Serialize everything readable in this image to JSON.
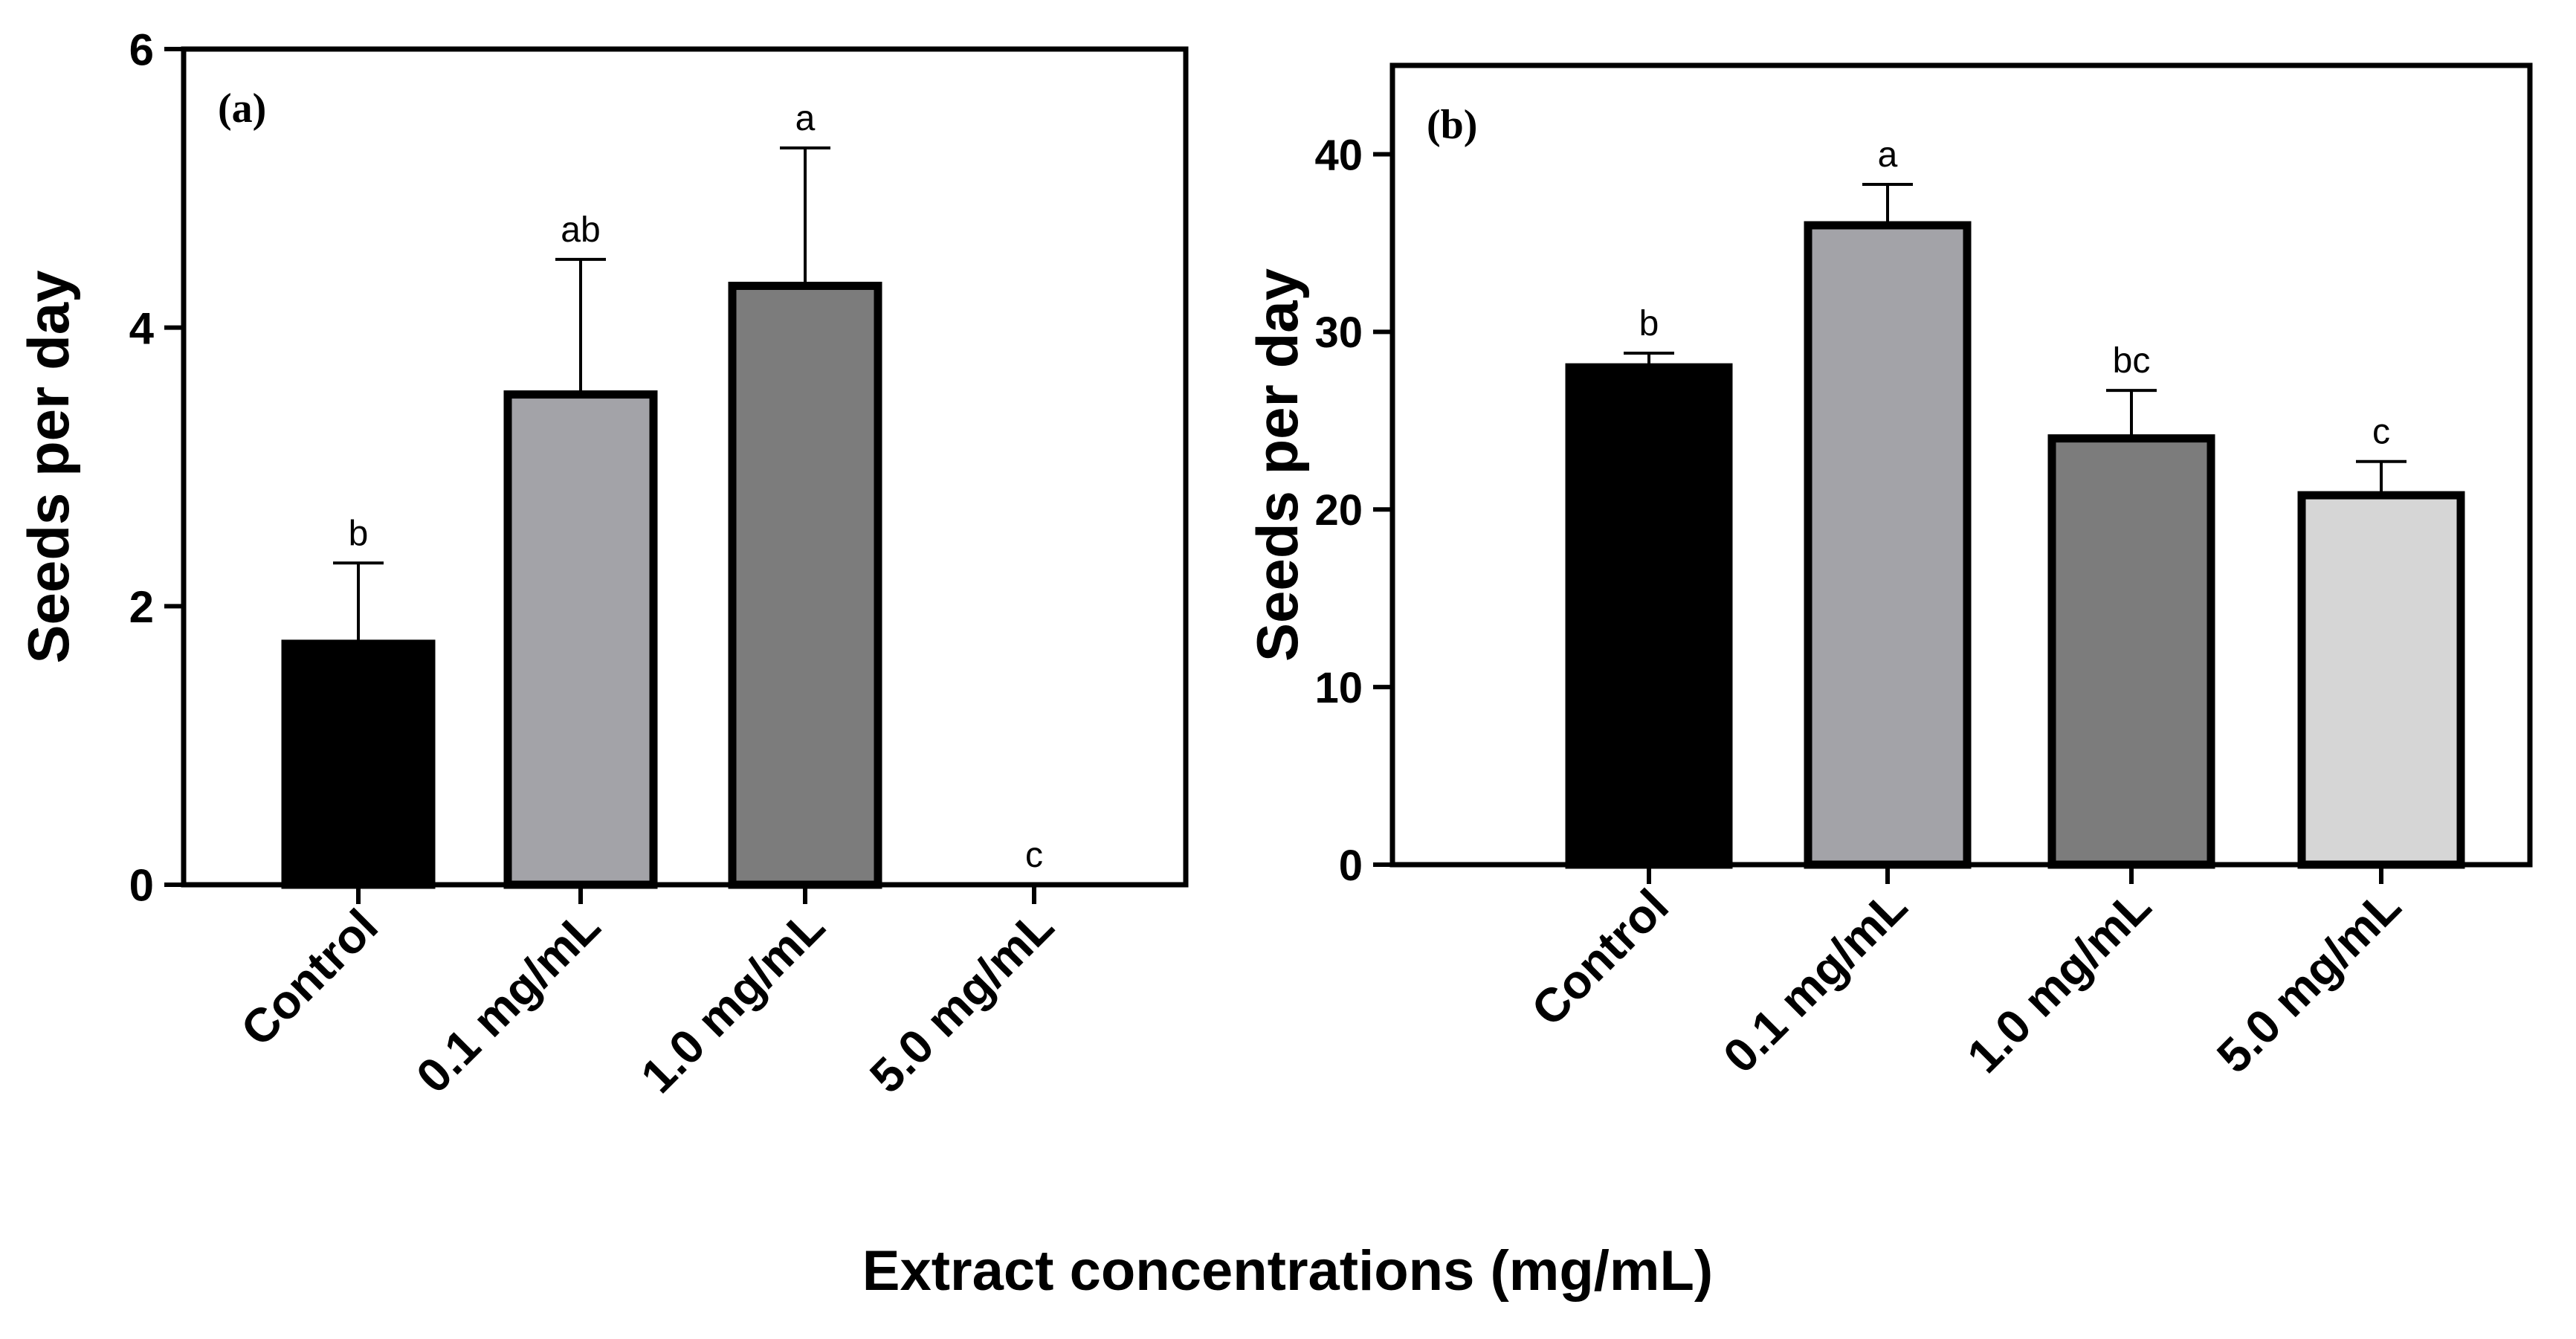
{
  "figure": {
    "shared_xlabel": "Extract concentrations (mg/mL)"
  },
  "chart_data": [
    {
      "type": "bar",
      "panel_label": "(a)",
      "title": "",
      "xlabel": "",
      "ylabel": "Seeds per day",
      "ylim": [
        0,
        6
      ],
      "yticks": [
        0,
        2,
        4,
        6
      ],
      "yticks_text": [
        "0",
        "2",
        "4",
        "6"
      ],
      "grid": false,
      "categories": [
        "Control",
        "0.1 mg/mL",
        "1.0 mg/mL",
        "5.0 mg/mL"
      ],
      "values": [
        1.73,
        3.52,
        4.3,
        0
      ],
      "errors": [
        0.58,
        0.97,
        0.99,
        0
      ],
      "letters": [
        "b",
        "ab",
        "a",
        "c"
      ],
      "colors": [
        "#000000",
        "#a3a3a8",
        "#7c7c7c",
        "#cfcfcf"
      ]
    },
    {
      "type": "bar",
      "panel_label": "(b)",
      "title": "",
      "xlabel": "",
      "ylabel": "Seeds per day",
      "ylim": [
        0,
        45
      ],
      "yticks": [
        0,
        10,
        20,
        30,
        40
      ],
      "yticks_text": [
        "0",
        "10",
        "20",
        "30",
        "40"
      ],
      "grid": false,
      "categories": [
        "Control",
        "0.1 mg/mL",
        "1.0 mg/mL",
        "5.0 mg/mL"
      ],
      "values": [
        28,
        36,
        24,
        20.8
      ],
      "errors": [
        0.8,
        2.3,
        2.7,
        1.9
      ],
      "letters": [
        "b",
        "a",
        "bc",
        "c"
      ],
      "colors": [
        "#000000",
        "#a3a3a8",
        "#7c7c7c",
        "#d6d6d6"
      ]
    }
  ]
}
